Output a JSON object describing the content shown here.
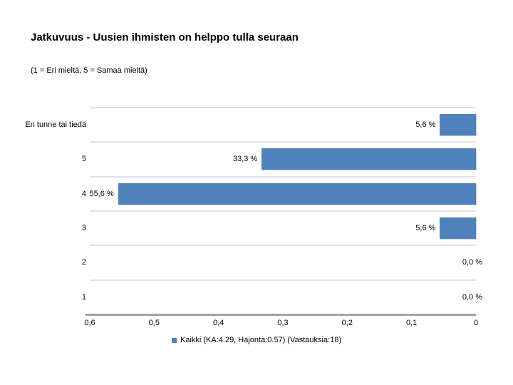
{
  "title": "Jatkuvuus - Uusien ihmisten on helppo tulla seuraan",
  "subtitle": "(1 = Eri mieltä, 5 = Samaa mieltä)",
  "chart_data": {
    "type": "bar",
    "orientation": "horizontal",
    "title": "Jatkuvuus - Uusien ihmisten on helppo tulla seuraan",
    "subtitle": "(1 = Eri mieltä, 5 = Samaa mieltä)",
    "categories": [
      "En tunne tai tiedä",
      "5",
      "4",
      "3",
      "2",
      "1"
    ],
    "values_percent": [
      5.6,
      33.3,
      55.6,
      5.6,
      0.0,
      0.0
    ],
    "value_labels": [
      "5,6 %",
      "33,3 %",
      "55,6 %",
      "5,6 %",
      "0,0 %",
      "0,0 %"
    ],
    "axis_max_percent": 60,
    "x_axis_reversed": true,
    "x_tick_labels": [
      "0,6",
      "0,5",
      "0,4",
      "0,3",
      "0,2",
      "0,1",
      "0"
    ],
    "grid": "horizontal row separators only",
    "legend_position": "bottom-center",
    "legend": "Kaikki (KA:4.29, Hajonta:0.57) (Vastauksia:18)",
    "bar_color": "#4F81BD",
    "gridline_color": "#DCE3EA",
    "axis_line_color": "#9EA3A8"
  }
}
